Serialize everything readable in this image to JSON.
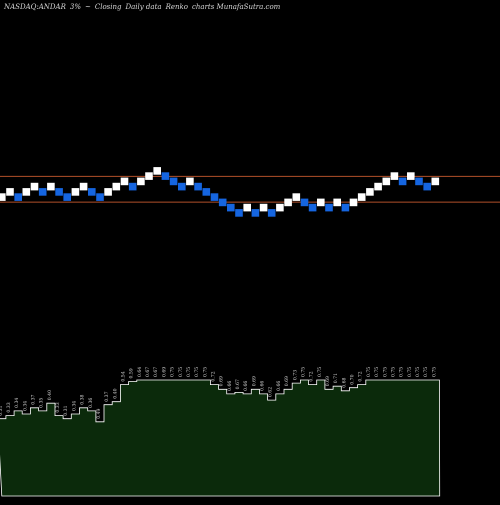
{
  "header": {
    "ticker": "NASDAQ:ANDAR",
    "pct": "3%",
    "sep": "~",
    "mode": "Closing",
    "period": "Daily data",
    "type": "Renko",
    "suffix": "charts MunafaSutra.com"
  },
  "colors": {
    "background": "#000000",
    "up_brick": "#ffffff",
    "down_brick": "#1565e0",
    "level_line": "#b2502a",
    "volume_fill": "#0b2a0b",
    "volume_stroke": "#ffffff",
    "volume_label": "#d8d8d8"
  },
  "chart_data": {
    "type": "renko",
    "brick_size_pct": 3,
    "price_range": [
      -28,
      33
    ],
    "reference_levels": [
      0,
      3
    ],
    "bricks": [
      {
        "level": 0,
        "dir": "up"
      },
      {
        "level": 1,
        "dir": "up"
      },
      {
        "level": 0,
        "dir": "down"
      },
      {
        "level": 1,
        "dir": "up"
      },
      {
        "level": 2,
        "dir": "up"
      },
      {
        "level": 1,
        "dir": "down"
      },
      {
        "level": 2,
        "dir": "up"
      },
      {
        "level": 1,
        "dir": "down"
      },
      {
        "level": 0,
        "dir": "down"
      },
      {
        "level": 1,
        "dir": "up"
      },
      {
        "level": 2,
        "dir": "up"
      },
      {
        "level": 1,
        "dir": "down"
      },
      {
        "level": 0,
        "dir": "down"
      },
      {
        "level": 1,
        "dir": "up"
      },
      {
        "level": 2,
        "dir": "up"
      },
      {
        "level": 3,
        "dir": "up"
      },
      {
        "level": 2,
        "dir": "down"
      },
      {
        "level": 3,
        "dir": "up"
      },
      {
        "level": 4,
        "dir": "up"
      },
      {
        "level": 5,
        "dir": "up"
      },
      {
        "level": 4,
        "dir": "down"
      },
      {
        "level": 3,
        "dir": "down"
      },
      {
        "level": 2,
        "dir": "down"
      },
      {
        "level": 3,
        "dir": "up"
      },
      {
        "level": 2,
        "dir": "down"
      },
      {
        "level": 1,
        "dir": "down"
      },
      {
        "level": 0,
        "dir": "down"
      },
      {
        "level": -1,
        "dir": "down"
      },
      {
        "level": -2,
        "dir": "down"
      },
      {
        "level": -3,
        "dir": "down"
      },
      {
        "level": -2,
        "dir": "up"
      },
      {
        "level": -3,
        "dir": "down"
      },
      {
        "level": -2,
        "dir": "up"
      },
      {
        "level": -3,
        "dir": "down"
      },
      {
        "level": -2,
        "dir": "up"
      },
      {
        "level": -1,
        "dir": "up"
      },
      {
        "level": 0,
        "dir": "up"
      },
      {
        "level": -1,
        "dir": "down"
      },
      {
        "level": -2,
        "dir": "down"
      },
      {
        "level": -1,
        "dir": "up"
      },
      {
        "level": -2,
        "dir": "down"
      },
      {
        "level": -1,
        "dir": "up"
      },
      {
        "level": -2,
        "dir": "down"
      },
      {
        "level": -1,
        "dir": "up"
      },
      {
        "level": 0,
        "dir": "up"
      },
      {
        "level": 1,
        "dir": "up"
      },
      {
        "level": 2,
        "dir": "up"
      },
      {
        "level": 3,
        "dir": "up"
      },
      {
        "level": 4,
        "dir": "up"
      },
      {
        "level": 3,
        "dir": "down"
      },
      {
        "level": 4,
        "dir": "up"
      },
      {
        "level": 3,
        "dir": "down"
      },
      {
        "level": 2,
        "dir": "down"
      },
      {
        "level": 3,
        "dir": "up"
      }
    ],
    "volume": {
      "values": [
        0.5,
        0.52,
        0.55,
        0.53,
        0.57,
        0.55,
        0.6,
        0.52,
        0.5,
        0.53,
        0.57,
        0.55,
        0.48,
        0.59,
        0.61,
        0.72,
        0.74,
        0.75,
        0.75,
        0.75,
        0.75,
        0.75,
        0.75,
        0.75,
        0.75,
        0.75,
        0.72,
        0.69,
        0.66,
        0.67,
        0.66,
        0.69,
        0.66,
        0.62,
        0.66,
        0.69,
        0.73,
        0.75,
        0.72,
        0.75,
        0.69,
        0.71,
        0.68,
        0.7,
        0.72,
        0.75,
        0.75,
        0.75,
        0.75,
        0.75,
        0.75,
        0.75,
        0.75,
        0.75
      ],
      "labels": [
        "0.31",
        "0.33",
        "0.34",
        "0.34",
        "0.37",
        "0.35",
        "0.40",
        "0.33",
        "0.31",
        "0.34",
        "0.38",
        "0.36",
        "0.49",
        "0.37",
        "0.40",
        "0.54",
        "0.59",
        "0.64",
        "0.67",
        "0.67",
        "0.69",
        "0.75",
        "0.75",
        "0.75",
        "0.75",
        "0.75",
        "0.72",
        "0.69",
        "0.66",
        "0.67",
        "0.66",
        "0.69",
        "0.66",
        "0.62",
        "0.66",
        "0.69",
        "0.73",
        "0.75",
        "0.72",
        "0.75",
        "0.69",
        "0.71",
        "0.68",
        "0.70",
        "0.72",
        "0.75",
        "0.75",
        "0.75",
        "0.75",
        "0.75",
        "0.75",
        "0.75",
        "0.75",
        "0.75"
      ]
    }
  }
}
